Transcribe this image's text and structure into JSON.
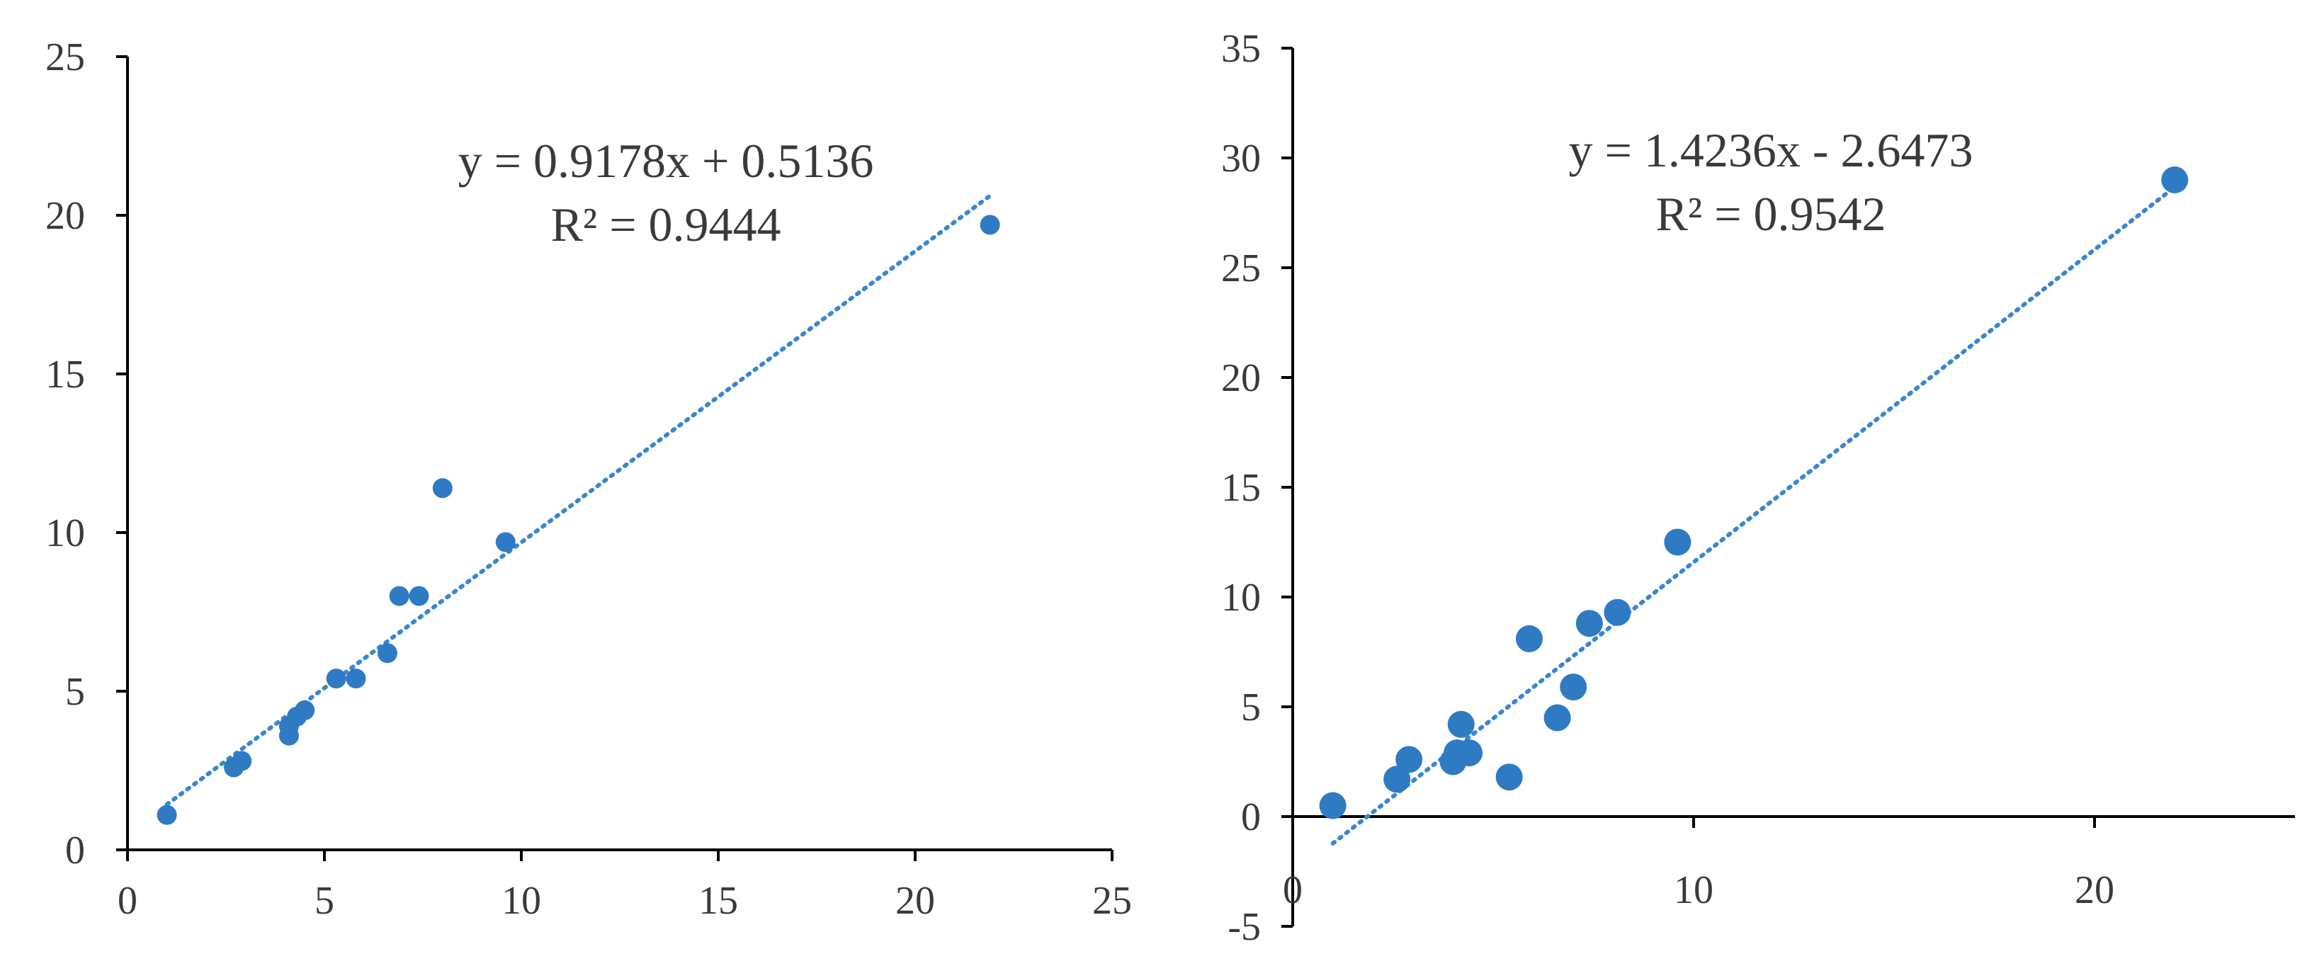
{
  "colors": {
    "points": "#2e7bc4",
    "trendline": "#3a86d0",
    "axis": "#000000",
    "text": "#3a3a3a"
  },
  "chart_data": [
    {
      "type": "scatter",
      "title": "",
      "xlabel": "",
      "ylabel": "",
      "xlim": [
        0,
        25
      ],
      "ylim": [
        0,
        25
      ],
      "xticks": [
        0,
        5,
        10,
        15,
        20,
        25
      ],
      "yticks": [
        0,
        5,
        10,
        15,
        20,
        25
      ],
      "grid": false,
      "legend": "none",
      "series": [
        {
          "points": [
            [
              1.0,
              1.1
            ],
            [
              2.7,
              2.6
            ],
            [
              2.9,
              2.8
            ],
            [
              4.1,
              3.6
            ],
            [
              4.1,
              3.9
            ],
            [
              4.3,
              4.2
            ],
            [
              4.5,
              4.4
            ],
            [
              5.3,
              5.4
            ],
            [
              5.8,
              5.4
            ],
            [
              6.6,
              6.2
            ],
            [
              6.9,
              8.0
            ],
            [
              7.4,
              8.0
            ],
            [
              8.0,
              11.4
            ],
            [
              9.6,
              9.7
            ],
            [
              21.9,
              19.7
            ]
          ],
          "trendline": {
            "slope": 0.9178,
            "intercept": 0.5136,
            "x_range": [
              1.0,
              21.9
            ]
          }
        }
      ],
      "annotations": [
        "y = 0.9178x + 0.5136",
        "R² = 0.9444"
      ]
    },
    {
      "type": "scatter",
      "title": "",
      "xlabel": "",
      "ylabel": "",
      "xlim": [
        0,
        25
      ],
      "ylim": [
        -5,
        35
      ],
      "xticks": [
        0,
        10,
        20
      ],
      "yticks": [
        -5,
        0,
        5,
        10,
        15,
        20,
        25,
        30,
        35
      ],
      "grid": false,
      "legend": "none",
      "series": [
        {
          "points": [
            [
              1.0,
              0.5
            ],
            [
              2.6,
              1.7
            ],
            [
              2.9,
              2.6
            ],
            [
              4.0,
              2.5
            ],
            [
              4.1,
              2.9
            ],
            [
              4.2,
              4.2
            ],
            [
              4.4,
              2.9
            ],
            [
              5.4,
              1.8
            ],
            [
              5.9,
              8.1
            ],
            [
              6.6,
              4.5
            ],
            [
              7.0,
              5.9
            ],
            [
              7.4,
              8.8
            ],
            [
              8.1,
              9.3
            ],
            [
              9.6,
              12.5
            ],
            [
              22.0,
              29.0
            ]
          ],
          "trendline": {
            "slope": 1.4236,
            "intercept": -2.6473,
            "x_range": [
              1.0,
              22.0
            ]
          }
        }
      ],
      "annotations": [
        "y = 1.4236x - 2.6473",
        "R² = 0.9542"
      ]
    }
  ]
}
